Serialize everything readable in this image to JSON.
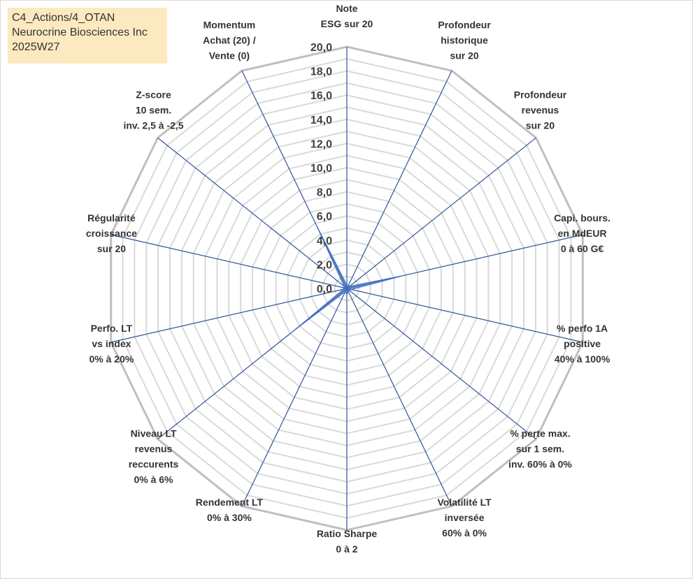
{
  "header": {
    "line1": "C4_Actions/4_OTAN",
    "line2": "Neurocrine Biosciences Inc",
    "line3": "2025W27"
  },
  "chart_data": {
    "type": "radar",
    "title": "",
    "categories": [
      [
        "Note",
        "ESG sur 20"
      ],
      [
        "Profondeur",
        "historique",
        "sur 20"
      ],
      [
        "Profondeur",
        "revenus",
        "sur 20"
      ],
      [
        "Capi. bours.",
        "en MdEUR",
        "0 à 60 G€"
      ],
      [
        "% perfo 1A",
        "positive",
        "40% à 100%"
      ],
      [
        "% perte max.",
        "sur 1 sem.",
        "inv. 60% à 0%"
      ],
      [
        "Volatilité LT",
        "inversée",
        "60% à 0%"
      ],
      [
        "Ratio Sharpe",
        "0 à 2"
      ],
      [
        "Rendement LT",
        "0% à 30%"
      ],
      [
        "Niveau LT",
        "revenus",
        "reccurents",
        "0% à 6%"
      ],
      [
        "Perfo. LT",
        "vs index",
        "0% à 20%"
      ],
      [
        "Régularité",
        "croissance",
        "sur 20"
      ],
      [
        "Z-score",
        "10 sem.",
        "inv. 2,5 à -2,5"
      ],
      [
        "Momentum",
        "Achat (20) /",
        "Vente (0)"
      ]
    ],
    "series": [
      {
        "values": [
          0.3,
          0.3,
          0.3,
          5.0,
          0.4,
          0.3,
          0.3,
          0.5,
          0.3,
          6.0,
          0.3,
          0.3,
          0.3,
          6.0
        ]
      }
    ],
    "ylim": [
      0,
      20
    ],
    "tick_step": 1,
    "tick_labels": [
      "0,0",
      "2,0",
      "4,0",
      "6,0",
      "8,0",
      "10,0",
      "12,0",
      "14,0",
      "16,0",
      "18,0",
      "20,0"
    ],
    "grid": true,
    "legend": "none",
    "colors": {
      "grid": "#d9d9d9",
      "outer_ring": "#bfbfbf",
      "spoke": "#2f5597",
      "series_fill": "#4472c4",
      "series_stroke": "#4472c4"
    }
  }
}
